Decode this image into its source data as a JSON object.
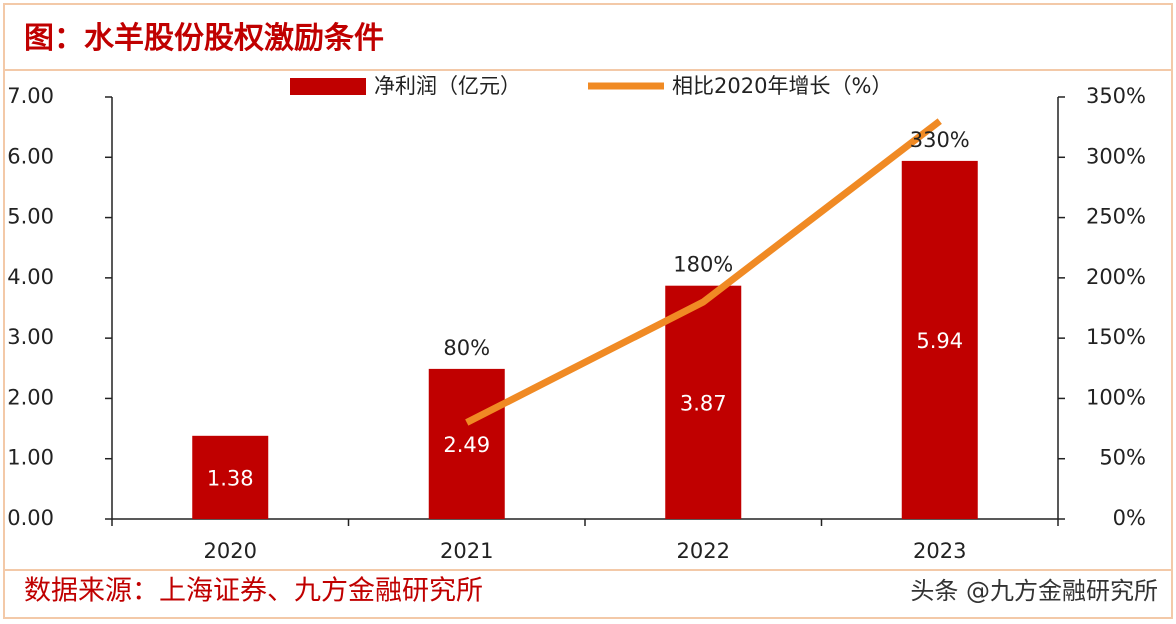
{
  "title": "图：水羊股份股权激励条件",
  "chart_data": {
    "type": "combo",
    "categories": [
      "2020",
      "2021",
      "2022",
      "2023"
    ],
    "series": [
      {
        "name": "净利润（亿元）",
        "type": "bar",
        "color": "#c00000",
        "values": [
          1.38,
          2.49,
          3.87,
          5.94
        ]
      },
      {
        "name": "相比2020年增长（%）",
        "type": "line",
        "axis": "y2",
        "color": "#f08a24",
        "values": [
          null,
          80,
          180,
          330
        ],
        "value_labels": [
          null,
          "80%",
          "180%",
          "330%"
        ]
      }
    ],
    "ylim": [
      0,
      7
    ],
    "yticks": [
      {
        "value": 0,
        "label": "0.00"
      },
      {
        "value": 1,
        "label": "1.00"
      },
      {
        "value": 2,
        "label": "2.00"
      },
      {
        "value": 3,
        "label": "3.00"
      },
      {
        "value": 4,
        "label": "4.00"
      },
      {
        "value": 5,
        "label": "5.00"
      },
      {
        "value": 6,
        "label": "6.00"
      },
      {
        "value": 7,
        "label": "7.00"
      }
    ],
    "y2lim": [
      0,
      350
    ],
    "y2ticks": [
      {
        "value": 0,
        "label": "0%"
      },
      {
        "value": 50,
        "label": "50%"
      },
      {
        "value": 100,
        "label": "100%"
      },
      {
        "value": 150,
        "label": "150%"
      },
      {
        "value": 200,
        "label": "200%"
      },
      {
        "value": 250,
        "label": "250%"
      },
      {
        "value": 300,
        "label": "300%"
      },
      {
        "value": 350,
        "label": "350%"
      }
    ],
    "legend": "top"
  },
  "source": "数据来源：上海证券、九方金融研究所",
  "watermark": "头条 @九方金融研究所"
}
